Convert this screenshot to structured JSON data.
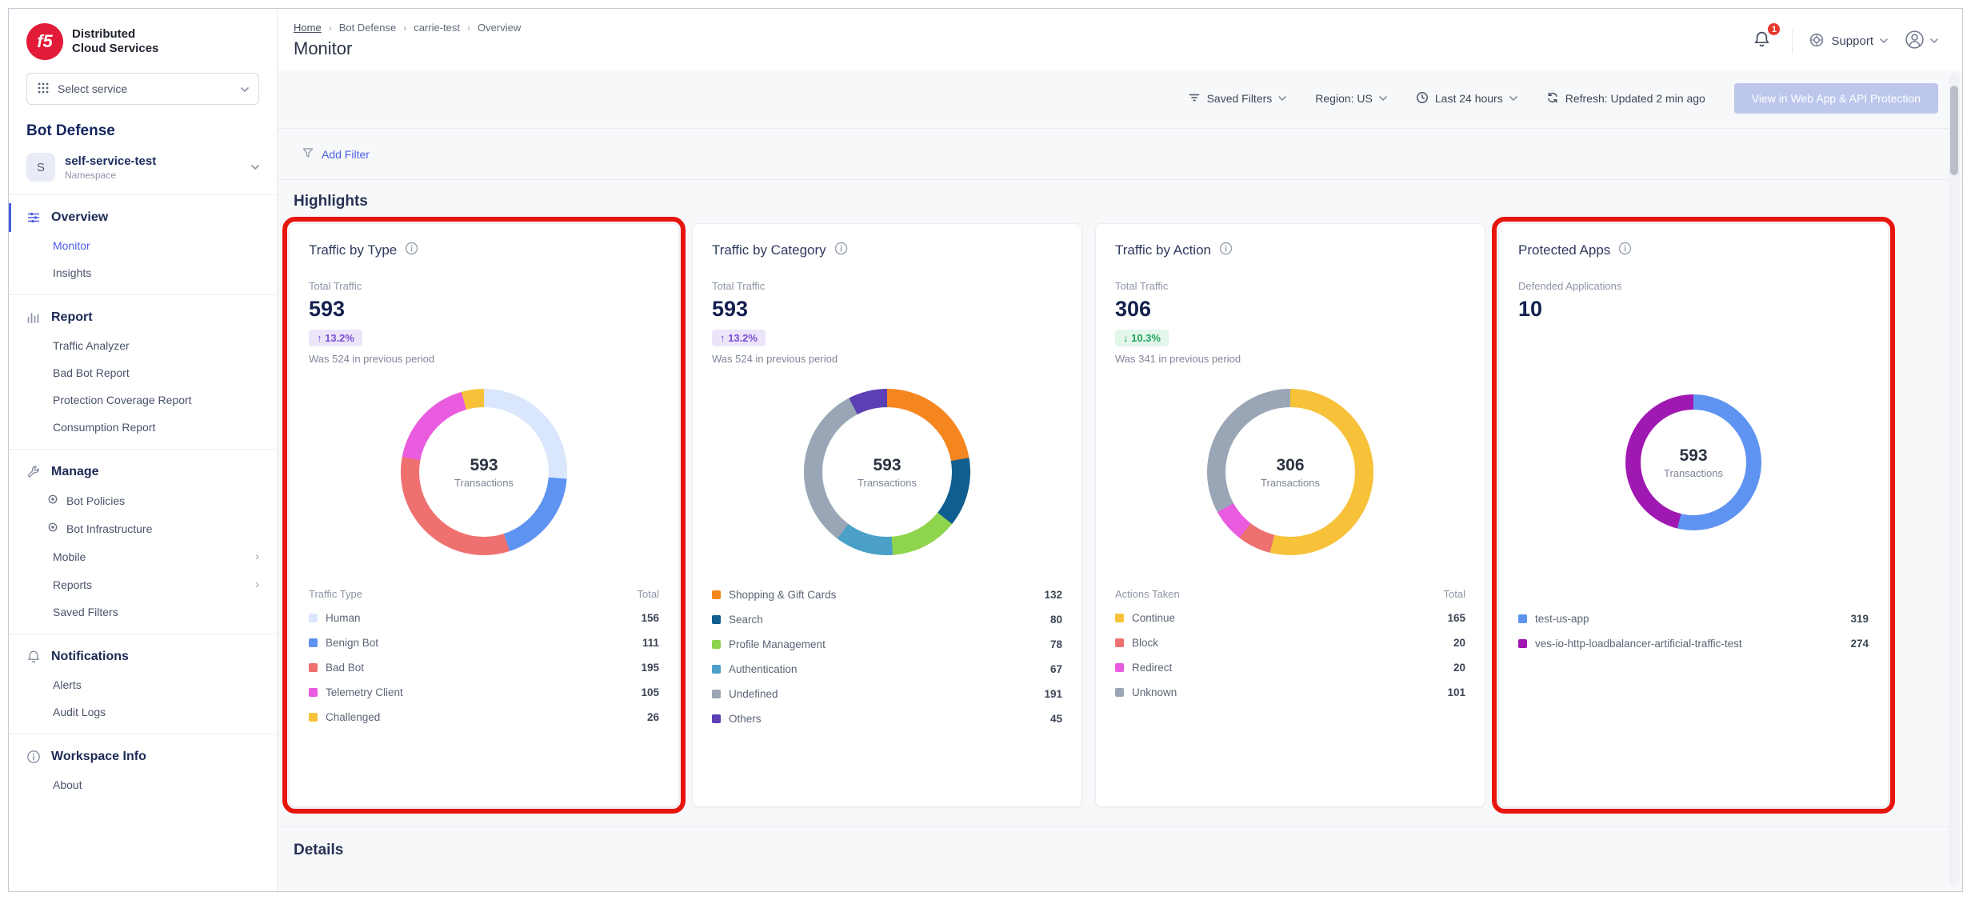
{
  "brand": {
    "logo_text": "f5",
    "name_line1": "Distributed",
    "name_line2": "Cloud Services"
  },
  "sidebar": {
    "select_service_label": "Select service",
    "product": "Bot Defense",
    "namespace": {
      "initial": "S",
      "name": "self-service-test",
      "type_label": "Namespace"
    },
    "sections": [
      {
        "label": "Overview",
        "icon": "sliders-icon",
        "active": true,
        "items": [
          {
            "label": "Monitor",
            "active": true
          },
          {
            "label": "Insights"
          }
        ]
      },
      {
        "label": "Report",
        "icon": "bar-chart-icon",
        "items": [
          {
            "label": "Traffic Analyzer"
          },
          {
            "label": "Bad Bot Report"
          },
          {
            "label": "Protection Coverage Report"
          },
          {
            "label": "Consumption Report"
          }
        ]
      },
      {
        "label": "Manage",
        "icon": "wrench-icon",
        "items": [
          {
            "label": "Bot Policies",
            "bullet": true
          },
          {
            "label": "Bot Infrastructure",
            "bullet": true
          },
          {
            "label": "Mobile",
            "chevron": true
          },
          {
            "label": "Reports",
            "chevron": true
          },
          {
            "label": "Saved Filters"
          }
        ]
      },
      {
        "label": "Notifications",
        "icon": "bell-icon",
        "items": [
          {
            "label": "Alerts"
          },
          {
            "label": "Audit Logs"
          }
        ]
      },
      {
        "label": "Workspace Info",
        "icon": "info-icon",
        "items": [
          {
            "label": "About"
          }
        ]
      }
    ]
  },
  "header": {
    "breadcrumb": [
      {
        "label": "Home",
        "underline": true
      },
      {
        "label": "Bot Defense"
      },
      {
        "label": "carrie-test"
      },
      {
        "label": "Overview"
      }
    ],
    "title": "Monitor",
    "notification_badge": "1",
    "support_label": "Support"
  },
  "toolbar": {
    "saved_filters_label": "Saved Filters",
    "region_label": "Region: US",
    "time_range_label": "Last 24 hours",
    "refresh_label": "Refresh: Updated 2 min ago",
    "cta_label": "View in Web App & API Protection",
    "add_filter_label": "Add Filter"
  },
  "sections": {
    "highlights_title": "Highlights",
    "details_title": "Details"
  },
  "cards": [
    {
      "title": "Traffic by Type",
      "metric_label": "Total Traffic",
      "metric_value": "593",
      "delta": {
        "direction": "up",
        "text": "13.2%"
      },
      "previous": "Was 524 in previous period",
      "highlighted": true
    },
    {
      "title": "Traffic by Category",
      "metric_label": "Total Traffic",
      "metric_value": "593",
      "delta": {
        "direction": "up",
        "text": "13.2%"
      },
      "previous": "Was 524 in previous period",
      "highlighted": false
    },
    {
      "title": "Traffic by Action",
      "metric_label": "Total Traffic",
      "metric_value": "306",
      "delta": {
        "direction": "down",
        "text": "10.3%"
      },
      "previous": "Was 341 in previous period",
      "highlighted": false
    },
    {
      "title": "Protected Apps",
      "metric_label": "Defended Applications",
      "metric_value": "10",
      "delta": null,
      "previous": null,
      "highlighted": true
    }
  ],
  "chart_data": [
    {
      "type": "donut",
      "title": "Traffic by Type",
      "center": {
        "value": "593",
        "label": "Transactions"
      },
      "legend_header": {
        "name": "Traffic Type",
        "total": "Total"
      },
      "labels": [
        "Human",
        "Benign Bot",
        "Bad Bot",
        "Telemetry Client",
        "Challenged"
      ],
      "values": [
        156,
        111,
        195,
        105,
        26
      ],
      "colors": [
        "#d9e6fc",
        "#5f93f1",
        "#ee7170",
        "#e95cdf",
        "#f7c23a"
      ]
    },
    {
      "type": "donut",
      "title": "Traffic by Category",
      "center": {
        "value": "593",
        "label": "Transactions"
      },
      "legend_header": null,
      "labels": [
        "Shopping & Gift Cards",
        "Search",
        "Profile Management",
        "Authentication",
        "Undefined",
        "Others"
      ],
      "values": [
        132,
        80,
        78,
        67,
        191,
        45
      ],
      "colors": [
        "#f5861f",
        "#0f5e8f",
        "#8ed44c",
        "#4aa0c6",
        "#9aa6b5",
        "#5b3fb5"
      ]
    },
    {
      "type": "donut",
      "title": "Traffic by Action",
      "center": {
        "value": "306",
        "label": "Transactions"
      },
      "legend_header": {
        "name": "Actions Taken",
        "total": "Total"
      },
      "labels": [
        "Continue",
        "Block",
        "Redirect",
        "Unknown"
      ],
      "values": [
        165,
        20,
        20,
        101
      ],
      "colors": [
        "#f7c23a",
        "#ee7170",
        "#e95cdf",
        "#9aa6b5"
      ]
    },
    {
      "type": "donut",
      "title": "Protected Apps",
      "center": {
        "value": "593",
        "label": "Transactions"
      },
      "legend_header": null,
      "labels": [
        "test-us-app",
        "ves-io-http-loadbalancer-artificial-traffic-test"
      ],
      "values": [
        319,
        274
      ],
      "colors": [
        "#5f93f1",
        "#a018b2"
      ]
    }
  ],
  "colors": {
    "accent_blue": "#4c5fe4",
    "highlight_red": "#e8150d",
    "badge_up_purple": "#7b4fd3",
    "badge_down_green": "#21a45d",
    "brand_red": "#e21b38"
  }
}
